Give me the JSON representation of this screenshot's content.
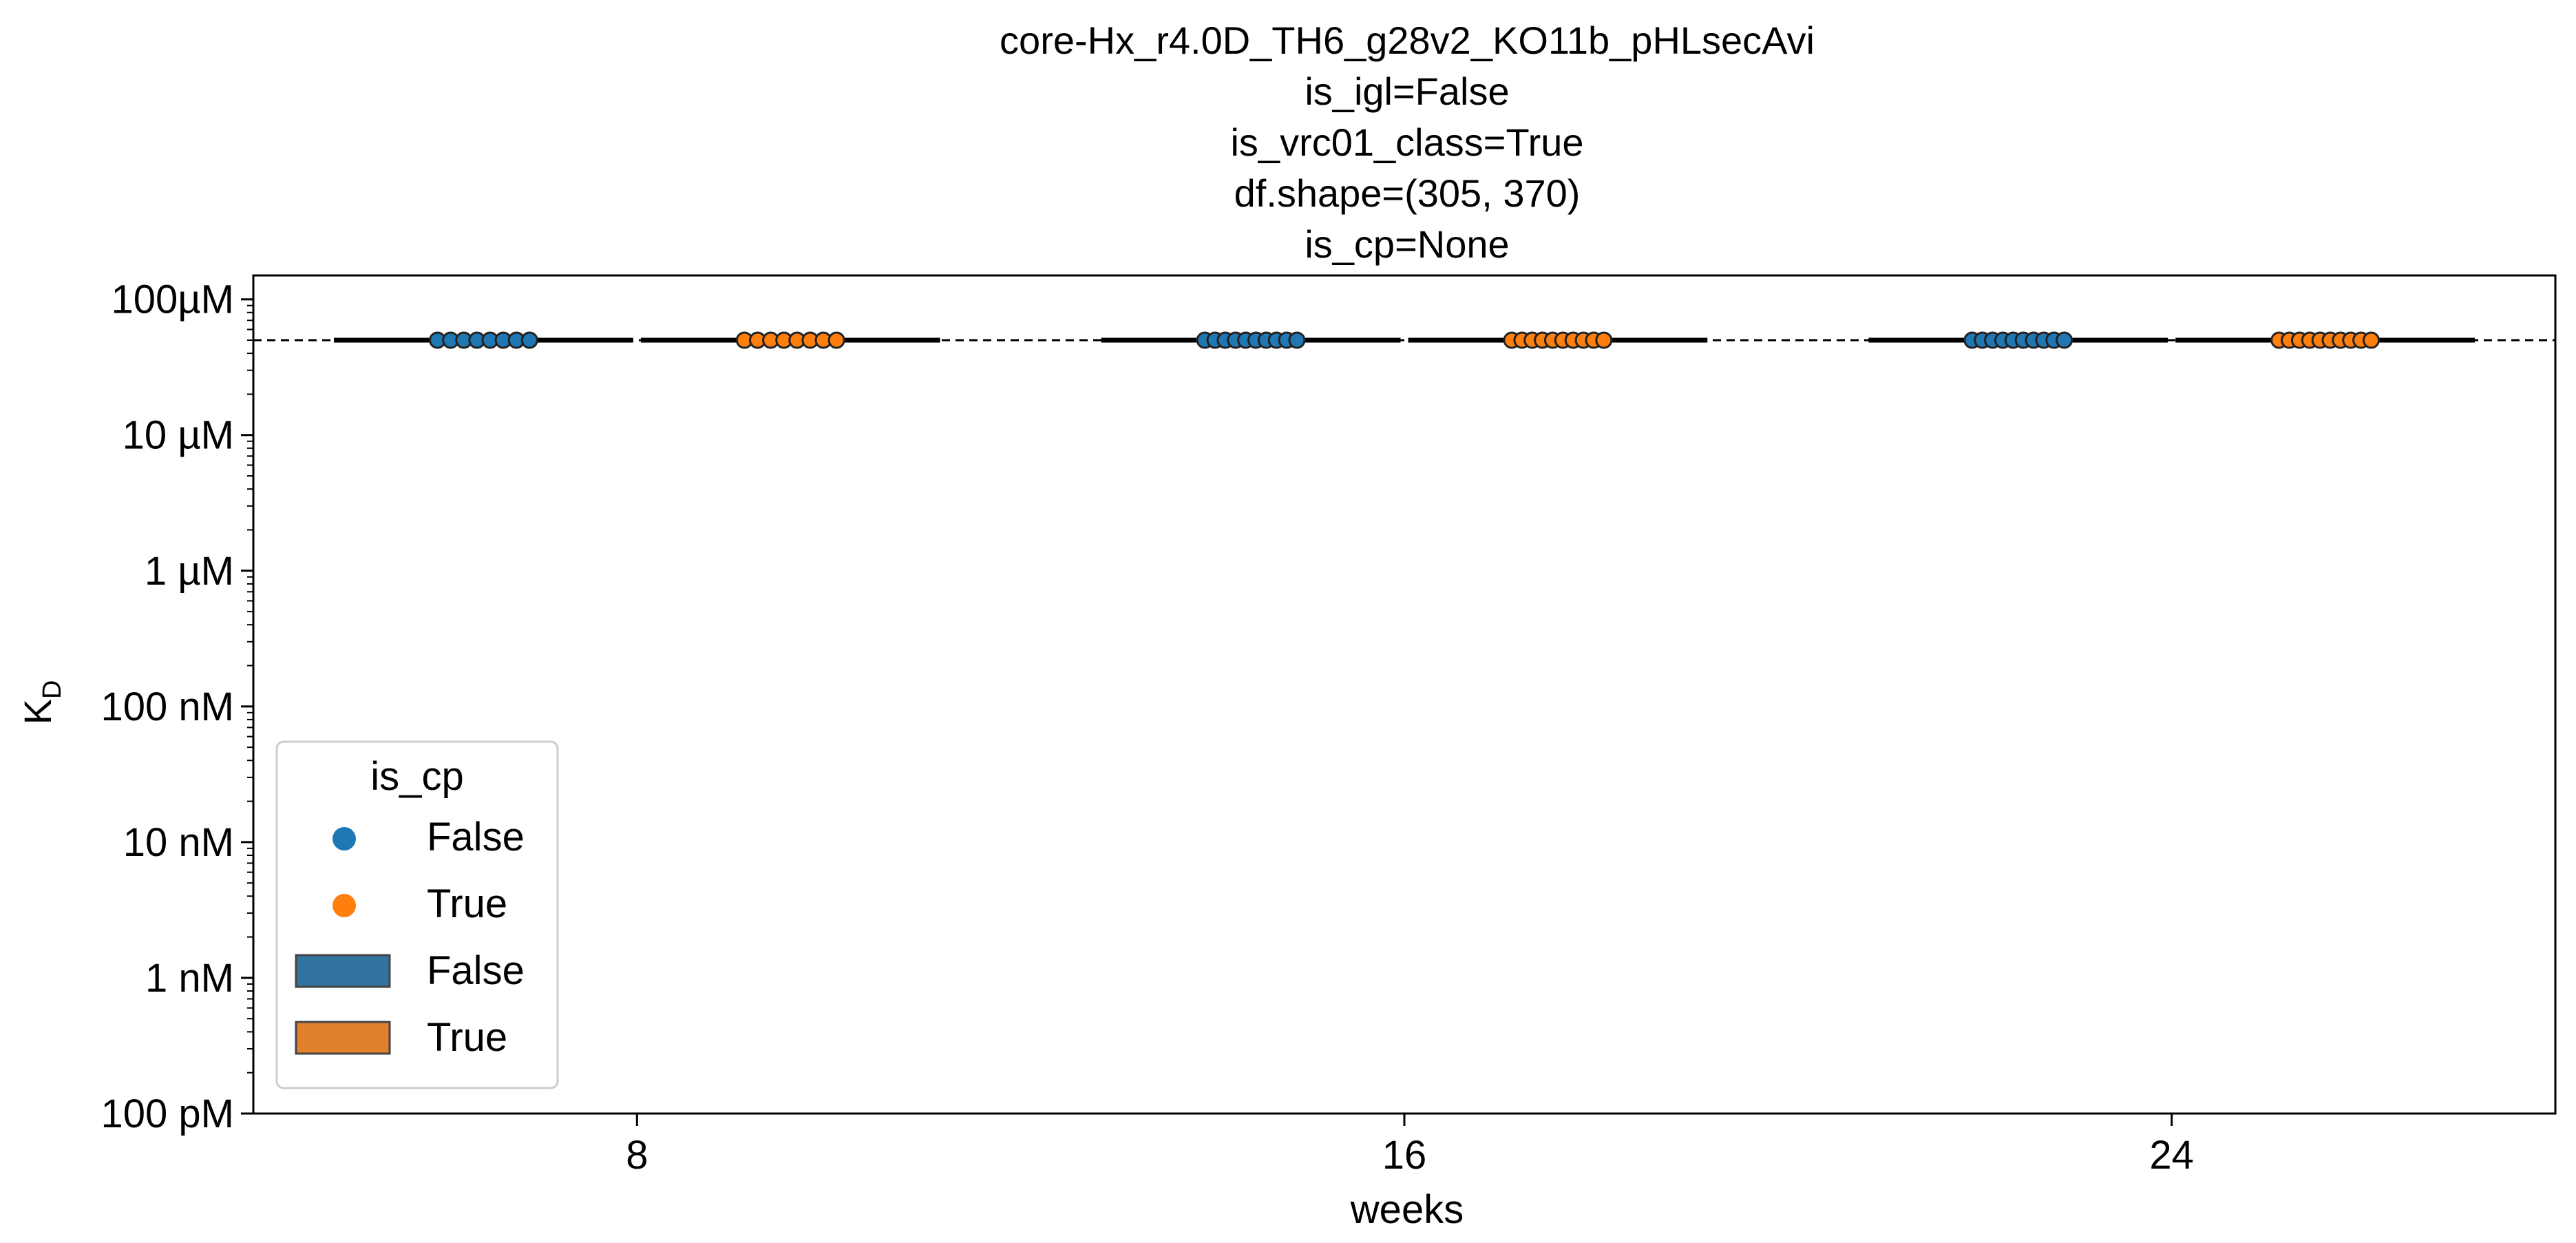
{
  "chart_data": {
    "type": "box",
    "title_lines": [
      "core-Hx_r4.0D_TH6_g28v2_KO11b_pHLsecAvi",
      "is_igl=False",
      "is_vrc01_class=True",
      "df.shape=(305, 370)",
      "is_cp=None"
    ],
    "xlabel": "weeks",
    "ylabel_main": "K",
    "ylabel_sub": "D",
    "categories": [
      "8",
      "16",
      "24"
    ],
    "y_scale": "log",
    "ylim": [
      1e-10,
      0.00015
    ],
    "y_ticks": [
      {
        "value": 0.0001,
        "label": "100µM"
      },
      {
        "value": 1e-05,
        "label": "10 µM"
      },
      {
        "value": 1e-06,
        "label": "1 µM"
      },
      {
        "value": 1e-07,
        "label": "100 nM"
      },
      {
        "value": 1e-08,
        "label": "10 nM"
      },
      {
        "value": 1e-09,
        "label": "1 nM"
      },
      {
        "value": 1e-10,
        "label": "100 pM"
      }
    ],
    "reference_line": {
      "value": 5e-05,
      "style": "dashed"
    },
    "hue": "is_cp",
    "series": [
      {
        "name": "False",
        "color": "#1f77b4",
        "box_color": "#3274a1",
        "points": {
          "8": [
            5e-05,
            5e-05,
            5e-05,
            5e-05,
            5e-05,
            5e-05,
            5e-05,
            5e-05
          ],
          "16": [
            5e-05,
            5e-05,
            5e-05,
            5e-05,
            5e-05,
            5e-05,
            5e-05,
            5e-05,
            5e-05,
            5e-05
          ],
          "24": [
            5e-05,
            5e-05,
            5e-05,
            5e-05,
            5e-05,
            5e-05,
            5e-05,
            5e-05,
            5e-05,
            5e-05
          ]
        }
      },
      {
        "name": "True",
        "color": "#ff7f0e",
        "box_color": "#e1812c",
        "points": {
          "8": [
            5e-05,
            5e-05,
            5e-05,
            5e-05,
            5e-05,
            5e-05,
            5e-05,
            5e-05
          ],
          "16": [
            5e-05,
            5e-05,
            5e-05,
            5e-05,
            5e-05,
            5e-05,
            5e-05,
            5e-05,
            5e-05,
            5e-05
          ],
          "24": [
            5e-05,
            5e-05,
            5e-05,
            5e-05,
            5e-05,
            5e-05,
            5e-05,
            5e-05,
            5e-05,
            5e-05
          ]
        }
      }
    ],
    "box_value": 5e-05,
    "legend": {
      "title": "is_cp",
      "placement": "lower-left",
      "entries": [
        {
          "label": "False",
          "kind": "marker",
          "color": "#1f77b4"
        },
        {
          "label": "True",
          "kind": "marker",
          "color": "#ff7f0e"
        },
        {
          "label": "False",
          "kind": "patch",
          "color": "#3274a1"
        },
        {
          "label": "True",
          "kind": "patch",
          "color": "#e1812c"
        }
      ]
    }
  }
}
